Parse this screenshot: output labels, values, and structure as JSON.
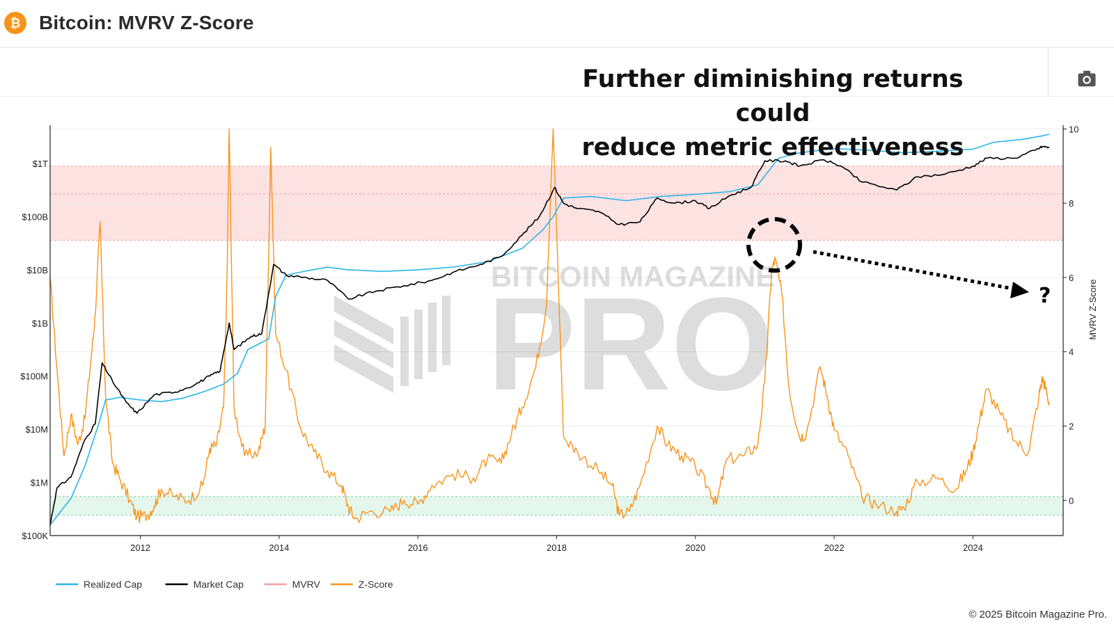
{
  "header": {
    "title": "Bitcoin: MVRV Z-Score",
    "headline_line1": "Further diminishing returns could",
    "headline_line2": "reduce metric effectiveness",
    "camera_icon": "camera-icon",
    "brand_icon": "bitcoin-icon"
  },
  "watermark": {
    "top": "BITCOIN MAGAZINE",
    "big": "PRO"
  },
  "annotation": {
    "question": "?"
  },
  "footer": {
    "copyright": "© 2025 Bitcoin Magazine Pro."
  },
  "colors": {
    "realized_cap": "#29b6e6",
    "market_cap": "#000000",
    "mvrv": "#f4a0a0",
    "z_score": "#f7931a",
    "red_band": "#fde2e2",
    "green_band": "#e4f7ec",
    "brand": "#f7931a"
  },
  "chart_data": {
    "type": "line",
    "title": "Bitcoin: MVRV Z-Score",
    "xlabel": "",
    "ylabel_left": "",
    "ylabel_right": "MVRV Z-Score",
    "x_range": [
      2010.7,
      2025.3
    ],
    "x_ticks": [
      2012,
      2014,
      2016,
      2018,
      2020,
      2022,
      2024
    ],
    "left_axis": {
      "scale": "log10",
      "range_log10": [
        5,
        12.72
      ],
      "tick_values_log10": [
        5,
        6,
        7,
        8,
        9,
        10,
        11,
        12
      ],
      "tick_labels": [
        "$100K",
        "$1M",
        "$10M",
        "$100M",
        "$1B",
        "$10B",
        "$100B",
        "$1T"
      ]
    },
    "right_axis": {
      "range": [
        -0.95,
        10.1
      ],
      "ticks": [
        0,
        2,
        4,
        6,
        8,
        10
      ]
    },
    "bands": [
      {
        "name": "overvalued zone",
        "axis": "right",
        "from": 7.0,
        "to": 9.0,
        "lines": [
          7.0,
          8.25,
          9.0
        ]
      },
      {
        "name": "undervalued zone",
        "axis": "right",
        "from": -0.4,
        "to": 0.1,
        "lines": [
          -0.4,
          0.1
        ]
      }
    ],
    "series": [
      {
        "name": "Realized Cap",
        "axis": "left_log10",
        "points": [
          [
            2010.7,
            5.2
          ],
          [
            2010.85,
            5.45
          ],
          [
            2011.0,
            5.7
          ],
          [
            2011.2,
            6.3
          ],
          [
            2011.4,
            7.1
          ],
          [
            2011.5,
            7.55
          ],
          [
            2011.7,
            7.6
          ],
          [
            2012.0,
            7.55
          ],
          [
            2012.3,
            7.52
          ],
          [
            2012.6,
            7.58
          ],
          [
            2012.9,
            7.7
          ],
          [
            2013.2,
            7.85
          ],
          [
            2013.4,
            8.05
          ],
          [
            2013.55,
            8.5
          ],
          [
            2013.7,
            8.6
          ],
          [
            2013.85,
            8.7
          ],
          [
            2013.95,
            9.5
          ],
          [
            2014.1,
            9.9
          ],
          [
            2014.4,
            9.98
          ],
          [
            2014.7,
            10.05
          ],
          [
            2015.0,
            10.0
          ],
          [
            2015.5,
            9.97
          ],
          [
            2016.0,
            10.0
          ],
          [
            2016.5,
            10.05
          ],
          [
            2017.0,
            10.15
          ],
          [
            2017.5,
            10.4
          ],
          [
            2017.8,
            10.75
          ],
          [
            2017.95,
            11.0
          ],
          [
            2018.1,
            11.35
          ],
          [
            2018.5,
            11.38
          ],
          [
            2019.0,
            11.3
          ],
          [
            2019.5,
            11.38
          ],
          [
            2020.0,
            11.42
          ],
          [
            2020.5,
            11.47
          ],
          [
            2020.9,
            11.6
          ],
          [
            2021.2,
            12.1
          ],
          [
            2021.5,
            12.2
          ],
          [
            2022.0,
            12.28
          ],
          [
            2022.5,
            12.25
          ],
          [
            2023.0,
            12.2
          ],
          [
            2023.5,
            12.23
          ],
          [
            2024.0,
            12.27
          ],
          [
            2024.3,
            12.4
          ],
          [
            2024.7,
            12.45
          ],
          [
            2025.0,
            12.52
          ],
          [
            2025.1,
            12.55
          ]
        ]
      },
      {
        "name": "Market Cap",
        "axis": "left_log10",
        "points": [
          [
            2010.7,
            5.2
          ],
          [
            2010.8,
            5.9
          ],
          [
            2011.0,
            6.1
          ],
          [
            2011.2,
            6.8
          ],
          [
            2011.35,
            7.1
          ],
          [
            2011.45,
            8.25
          ],
          [
            2011.6,
            7.9
          ],
          [
            2011.8,
            7.5
          ],
          [
            2011.95,
            7.3
          ],
          [
            2012.2,
            7.65
          ],
          [
            2012.5,
            7.7
          ],
          [
            2012.8,
            7.85
          ],
          [
            2013.0,
            8.0
          ],
          [
            2013.15,
            8.1
          ],
          [
            2013.28,
            9.0
          ],
          [
            2013.35,
            8.5
          ],
          [
            2013.6,
            8.75
          ],
          [
            2013.75,
            8.8
          ],
          [
            2013.92,
            10.1
          ],
          [
            2014.1,
            9.9
          ],
          [
            2014.4,
            9.85
          ],
          [
            2014.7,
            9.8
          ],
          [
            2015.0,
            9.45
          ],
          [
            2015.4,
            9.6
          ],
          [
            2015.8,
            9.7
          ],
          [
            2016.2,
            9.8
          ],
          [
            2016.5,
            9.95
          ],
          [
            2016.9,
            10.1
          ],
          [
            2017.2,
            10.25
          ],
          [
            2017.5,
            10.65
          ],
          [
            2017.75,
            11.0
          ],
          [
            2017.97,
            11.55
          ],
          [
            2018.1,
            11.25
          ],
          [
            2018.3,
            11.15
          ],
          [
            2018.6,
            11.1
          ],
          [
            2018.9,
            10.85
          ],
          [
            2019.2,
            10.9
          ],
          [
            2019.45,
            11.35
          ],
          [
            2019.7,
            11.25
          ],
          [
            2020.0,
            11.3
          ],
          [
            2020.2,
            11.15
          ],
          [
            2020.5,
            11.4
          ],
          [
            2020.8,
            11.55
          ],
          [
            2021.0,
            12.05
          ],
          [
            2021.3,
            12.05
          ],
          [
            2021.5,
            11.95
          ],
          [
            2021.85,
            12.07
          ],
          [
            2022.1,
            11.95
          ],
          [
            2022.4,
            11.65
          ],
          [
            2022.9,
            11.5
          ],
          [
            2023.2,
            11.75
          ],
          [
            2023.6,
            11.8
          ],
          [
            2024.0,
            11.95
          ],
          [
            2024.2,
            12.1
          ],
          [
            2024.6,
            12.1
          ],
          [
            2024.9,
            12.25
          ],
          [
            2025.0,
            12.32
          ],
          [
            2025.1,
            12.3
          ]
        ]
      },
      {
        "name": "MVRV",
        "axis": "right",
        "legend_only": true,
        "points": []
      },
      {
        "name": "Z-Score",
        "axis": "right",
        "points": [
          [
            2010.7,
            6.0
          ],
          [
            2010.8,
            3.5
          ],
          [
            2010.9,
            1.2
          ],
          [
            2011.0,
            2.3
          ],
          [
            2011.1,
            1.5
          ],
          [
            2011.2,
            2.2
          ],
          [
            2011.3,
            4.0
          ],
          [
            2011.35,
            5.0
          ],
          [
            2011.42,
            7.5
          ],
          [
            2011.5,
            2.8
          ],
          [
            2011.6,
            1.0
          ],
          [
            2011.7,
            0.6
          ],
          [
            2011.85,
            0.0
          ],
          [
            2011.95,
            -0.45
          ],
          [
            2012.1,
            -0.4
          ],
          [
            2012.2,
            -0.15
          ],
          [
            2012.3,
            0.3
          ],
          [
            2012.5,
            0.1
          ],
          [
            2012.7,
            0.0
          ],
          [
            2012.9,
            0.4
          ],
          [
            2013.0,
            1.4
          ],
          [
            2013.1,
            1.5
          ],
          [
            2013.2,
            2.5
          ],
          [
            2013.25,
            6.0
          ],
          [
            2013.28,
            10.0
          ],
          [
            2013.35,
            2.5
          ],
          [
            2013.5,
            1.2
          ],
          [
            2013.7,
            1.3
          ],
          [
            2013.8,
            2.0
          ],
          [
            2013.88,
            9.5
          ],
          [
            2013.95,
            4.5
          ],
          [
            2014.1,
            3.5
          ],
          [
            2014.3,
            2.0
          ],
          [
            2014.5,
            1.3
          ],
          [
            2014.7,
            0.8
          ],
          [
            2014.9,
            0.4
          ],
          [
            2015.0,
            -0.2
          ],
          [
            2015.1,
            -0.5
          ],
          [
            2015.3,
            -0.3
          ],
          [
            2015.6,
            -0.3
          ],
          [
            2015.8,
            0.0
          ],
          [
            2016.0,
            -0.1
          ],
          [
            2016.2,
            0.4
          ],
          [
            2016.5,
            0.7
          ],
          [
            2016.8,
            0.6
          ],
          [
            2017.0,
            1.1
          ],
          [
            2017.2,
            1.0
          ],
          [
            2017.35,
            1.8
          ],
          [
            2017.5,
            2.5
          ],
          [
            2017.7,
            3.6
          ],
          [
            2017.85,
            5.2
          ],
          [
            2017.95,
            10.0
          ],
          [
            2018.05,
            4.5
          ],
          [
            2018.1,
            1.7
          ],
          [
            2018.3,
            1.3
          ],
          [
            2018.6,
            0.8
          ],
          [
            2018.8,
            0.4
          ],
          [
            2018.9,
            -0.4
          ],
          [
            2019.05,
            -0.3
          ],
          [
            2019.2,
            0.4
          ],
          [
            2019.45,
            2.0
          ],
          [
            2019.6,
            1.5
          ],
          [
            2019.8,
            1.2
          ],
          [
            2020.0,
            0.9
          ],
          [
            2020.2,
            0.3
          ],
          [
            2020.3,
            -0.1
          ],
          [
            2020.45,
            1.1
          ],
          [
            2020.7,
            1.2
          ],
          [
            2020.9,
            1.5
          ],
          [
            2021.0,
            3.2
          ],
          [
            2021.1,
            6.2
          ],
          [
            2021.15,
            6.5
          ],
          [
            2021.25,
            5.5
          ],
          [
            2021.35,
            3.0
          ],
          [
            2021.5,
            1.7
          ],
          [
            2021.6,
            1.8
          ],
          [
            2021.8,
            3.6
          ],
          [
            2021.9,
            2.8
          ],
          [
            2022.0,
            1.9
          ],
          [
            2022.2,
            1.2
          ],
          [
            2022.4,
            0.1
          ],
          [
            2022.6,
            -0.1
          ],
          [
            2022.9,
            -0.3
          ],
          [
            2023.0,
            -0.2
          ],
          [
            2023.2,
            0.5
          ],
          [
            2023.5,
            0.6
          ],
          [
            2023.75,
            0.3
          ],
          [
            2023.9,
            0.8
          ],
          [
            2024.0,
            1.3
          ],
          [
            2024.1,
            2.2
          ],
          [
            2024.2,
            3.0
          ],
          [
            2024.4,
            2.3
          ],
          [
            2024.6,
            1.6
          ],
          [
            2024.8,
            1.3
          ],
          [
            2024.95,
            2.8
          ],
          [
            2025.0,
            3.3
          ],
          [
            2025.05,
            3.0
          ],
          [
            2025.1,
            2.6
          ]
        ]
      }
    ],
    "legend": {
      "position": "bottom-left",
      "entries": [
        "Realized Cap",
        "Market Cap",
        "MVRV",
        "Z-Score"
      ]
    }
  }
}
